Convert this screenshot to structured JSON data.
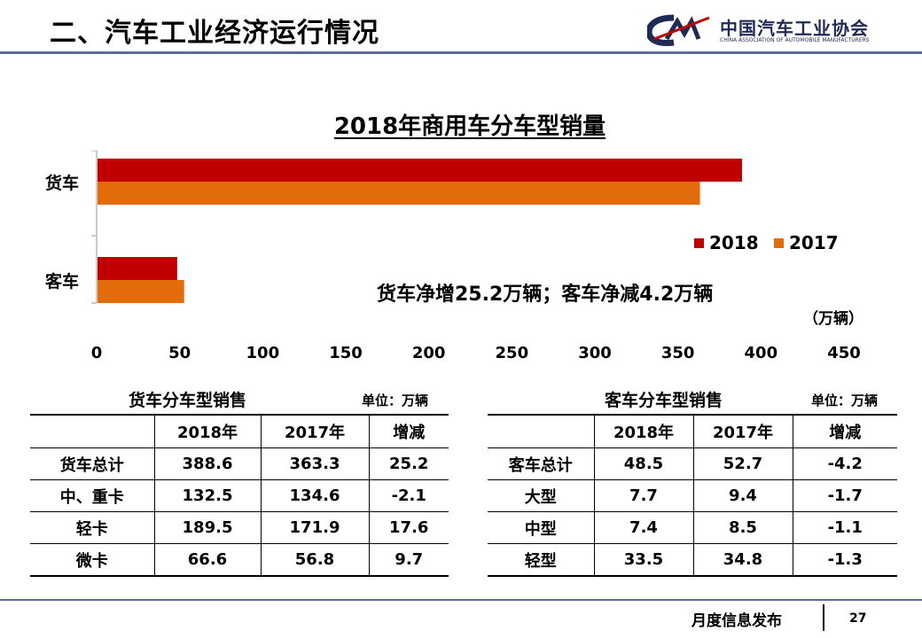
{
  "header": {
    "title": "二、汽车工业经济运行情况",
    "logo_name": "中国汽车工业协会",
    "logo_sub": "CHINA ASSOCIATION OF AUTOMOBILE MANUFACTURERS"
  },
  "chart_data": {
    "type": "bar",
    "orientation": "horizontal",
    "title": "2018年商用车分车型销量",
    "categories": [
      "货车",
      "客车"
    ],
    "series": [
      {
        "name": "2018",
        "color": "#c00000",
        "values": [
          388.6,
          48.5
        ]
      },
      {
        "name": "2017",
        "color": "#e36c0a",
        "values": [
          363.3,
          52.7
        ]
      }
    ],
    "xlim": [
      0,
      450
    ],
    "x_ticks": [
      "0",
      "50",
      "100",
      "150",
      "200",
      "250",
      "300",
      "350",
      "400",
      "450"
    ],
    "xlabel": "（万辆）",
    "legend_position": "right",
    "annotation": "货车净增25.2万辆；客车净减4.2万辆",
    "grid": false
  },
  "truck_table": {
    "caption": "货车分车型销售",
    "unit": "单位：万辆",
    "headers": [
      "",
      "2018年",
      "2017年",
      "增减"
    ],
    "rows": [
      [
        "货车总计",
        "388.6",
        "363.3",
        "25.2"
      ],
      [
        "中、重卡",
        "132.5",
        "134.6",
        "-2.1"
      ],
      [
        "轻卡",
        "189.5",
        "171.9",
        "17.6"
      ],
      [
        "微卡",
        "66.6",
        "56.8",
        "9.7"
      ]
    ]
  },
  "bus_table": {
    "caption": "客车分车型销售",
    "unit": "单位：万辆",
    "headers": [
      "",
      "2018年",
      "2017年",
      "增减"
    ],
    "rows": [
      [
        "客车总计",
        "48.5",
        "52.7",
        "-4.2"
      ],
      [
        "大型",
        "7.7",
        "9.4",
        "-1.7"
      ],
      [
        "中型",
        "7.4",
        "8.5",
        "-1.1"
      ],
      [
        "轻型",
        "33.5",
        "34.8",
        "-1.3"
      ]
    ]
  },
  "footer": {
    "text": "月度信息发布",
    "page_number": "27"
  }
}
